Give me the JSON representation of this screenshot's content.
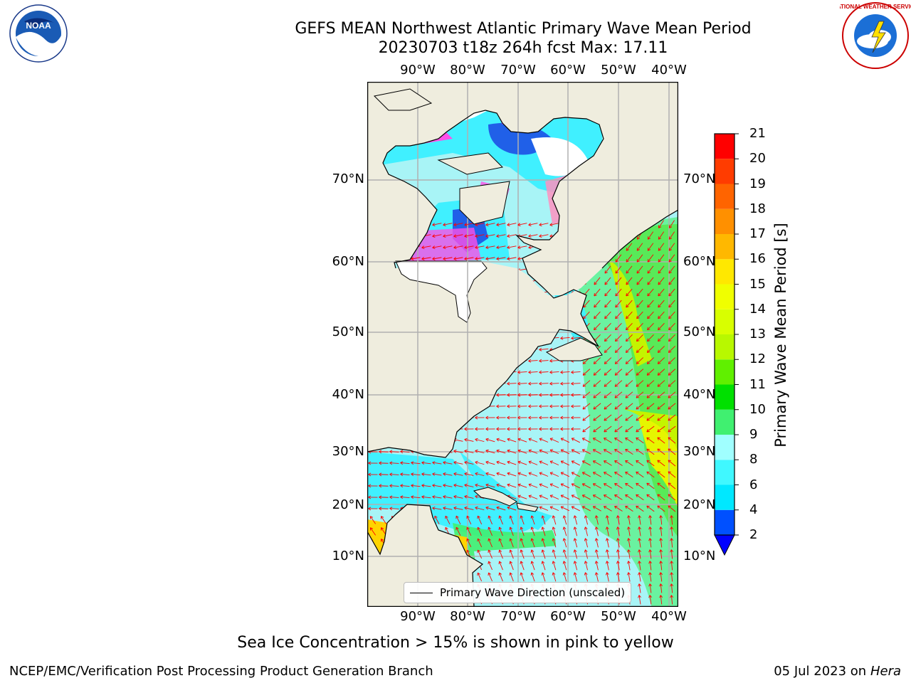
{
  "header": {
    "title_line1": "GEFS MEAN Northwest Atlantic Primary Wave Mean Period",
    "title_line2": "20230703 t18z 264h fcst   Max: 17.11"
  },
  "logos": {
    "left": {
      "icon": "noaa-logo",
      "text": "NOAA"
    },
    "right": {
      "icon": "national-weather-service-logo",
      "text": "NATIONAL WEATHER SERVICE"
    }
  },
  "map": {
    "lon_ticks_top": [
      "90°W",
      "80°W",
      "70°W",
      "60°W",
      "50°W",
      "40°W"
    ],
    "lon_ticks_bottom": [
      "90°W",
      "80°W",
      "70°W",
      "60°W",
      "50°W",
      "40°W"
    ],
    "lat_ticks_left": [
      "70°N",
      "60°N",
      "50°N",
      "40°N",
      "30°N",
      "20°N",
      "10°N"
    ],
    "lat_ticks_right": [
      "70°N",
      "60°N",
      "50°N",
      "40°N",
      "30°N",
      "20°N",
      "10°N"
    ],
    "legend_label": "Primary Wave Direction (unscaled)",
    "colors": {
      "land": "#efedde",
      "grid": "#b0b0b0",
      "arrow": "#ff0000",
      "ice": "#ffffff"
    }
  },
  "colorbar": {
    "label": "Primary Wave Mean Period [s]",
    "ticks": [
      "2",
      "4",
      "6",
      "8",
      "9",
      "10",
      "11",
      "12",
      "13",
      "14",
      "15",
      "16",
      "17",
      "18",
      "19",
      "20",
      "21"
    ],
    "colors": [
      "#0050ff",
      "#00e8ff",
      "#40f8ff",
      "#a0ffff",
      "#40f070",
      "#00e000",
      "#60f000",
      "#b8f800",
      "#d8ff00",
      "#f0ff00",
      "#ffe800",
      "#ffb800",
      "#ff9000",
      "#ff6400",
      "#ff3c00",
      "#ff0000"
    ],
    "under_color": "#0000ff"
  },
  "caption": "Sea Ice Concentration > 15% is shown in pink to yellow",
  "footer": {
    "left": "NCEP/EMC/Verification Post Processing Product Generation Branch",
    "right_date": "05 Jul 2023 on ",
    "right_host": "Hera"
  }
}
